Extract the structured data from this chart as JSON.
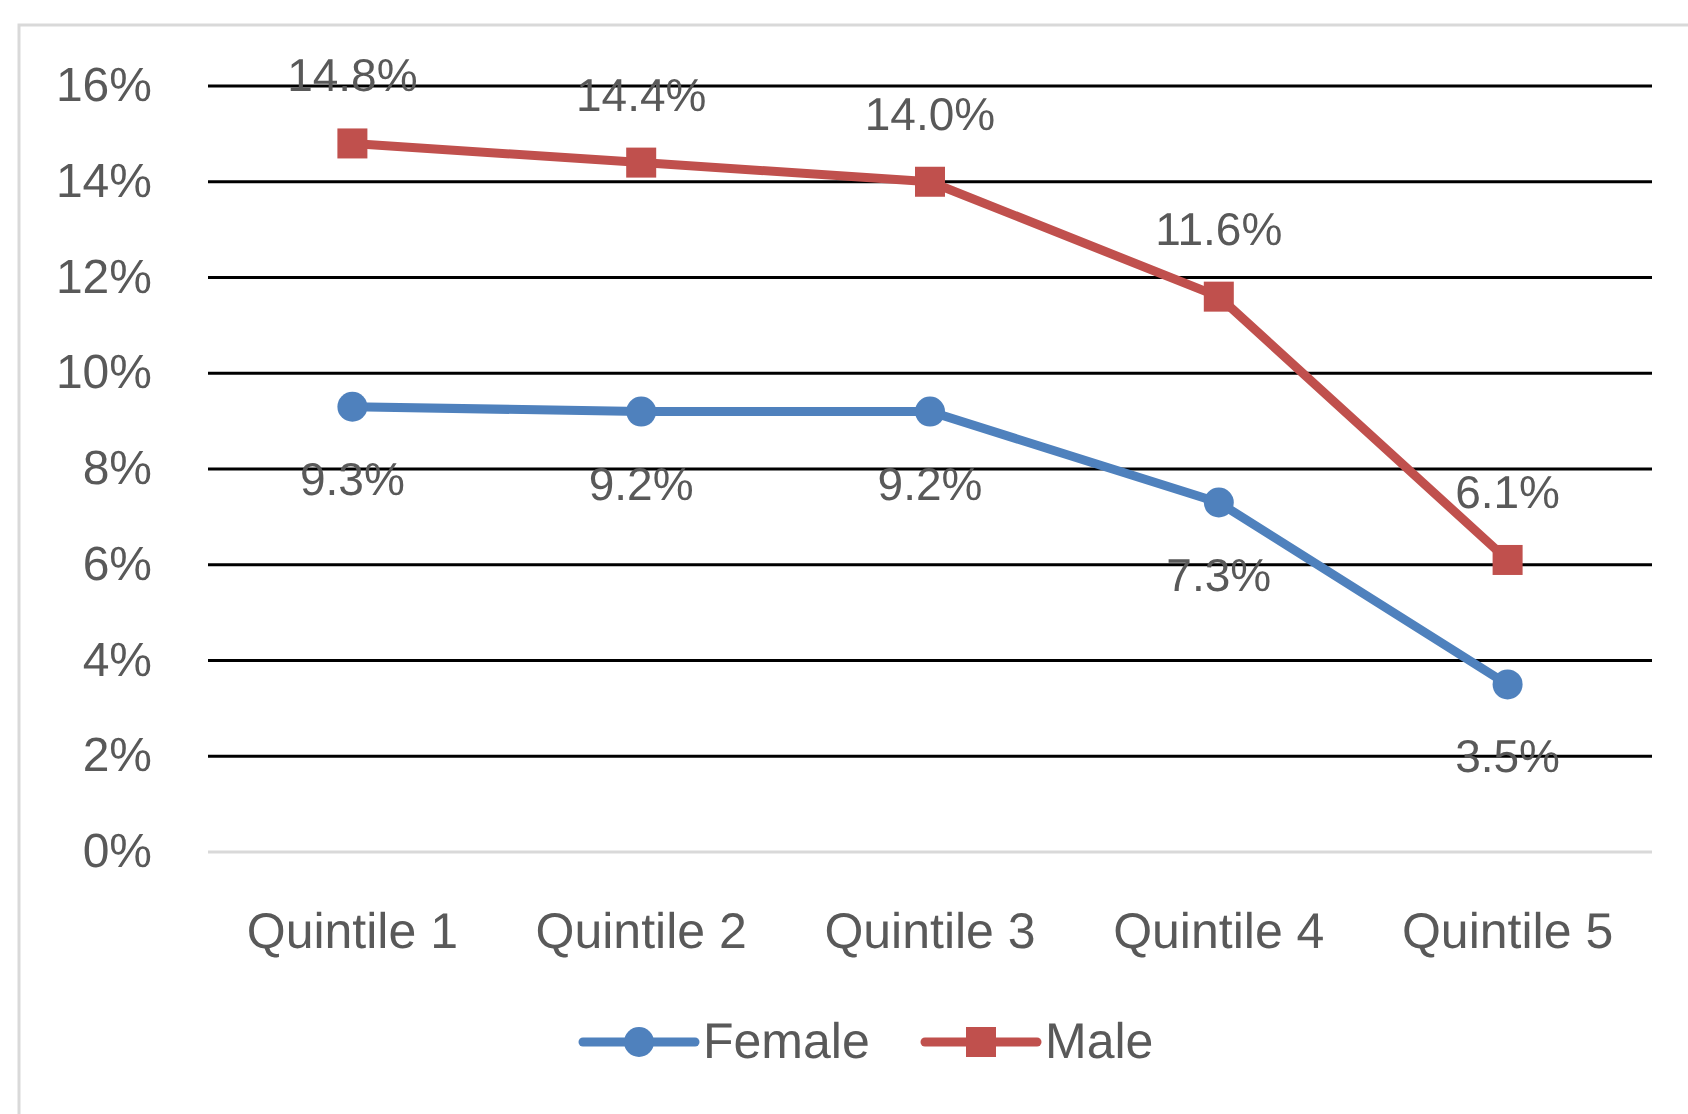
{
  "chart_data": {
    "type": "line",
    "categories": [
      "Quintile 1",
      "Quintile 2",
      "Quintile 3",
      "Quintile 4",
      "Quintile 5"
    ],
    "series": [
      {
        "name": "Female",
        "color": "#4f81bd",
        "marker": "circle",
        "values": [
          9.3,
          9.2,
          9.2,
          7.3,
          3.5
        ],
        "value_labels": [
          "9.3%",
          "9.2%",
          "9.2%",
          "7.3%",
          "3.5%"
        ]
      },
      {
        "name": "Male",
        "color": "#c0504d",
        "marker": "square",
        "values": [
          14.8,
          14.4,
          14.0,
          11.6,
          6.1
        ],
        "value_labels": [
          "14.8%",
          "14.4%",
          "14.0%",
          "11.6%",
          "6.1%"
        ]
      }
    ],
    "ylim": [
      0,
      16
    ],
    "yticks": [
      {
        "value": 0,
        "label": "0%"
      },
      {
        "value": 2,
        "label": "2%"
      },
      {
        "value": 4,
        "label": "4%"
      },
      {
        "value": 6,
        "label": "6%"
      },
      {
        "value": 8,
        "label": "8%"
      },
      {
        "value": 10,
        "label": "10%"
      },
      {
        "value": 12,
        "label": "12%"
      },
      {
        "value": 14,
        "label": "14%"
      },
      {
        "value": 16,
        "label": "16%"
      }
    ],
    "grid": "y",
    "legend": "bottom"
  }
}
